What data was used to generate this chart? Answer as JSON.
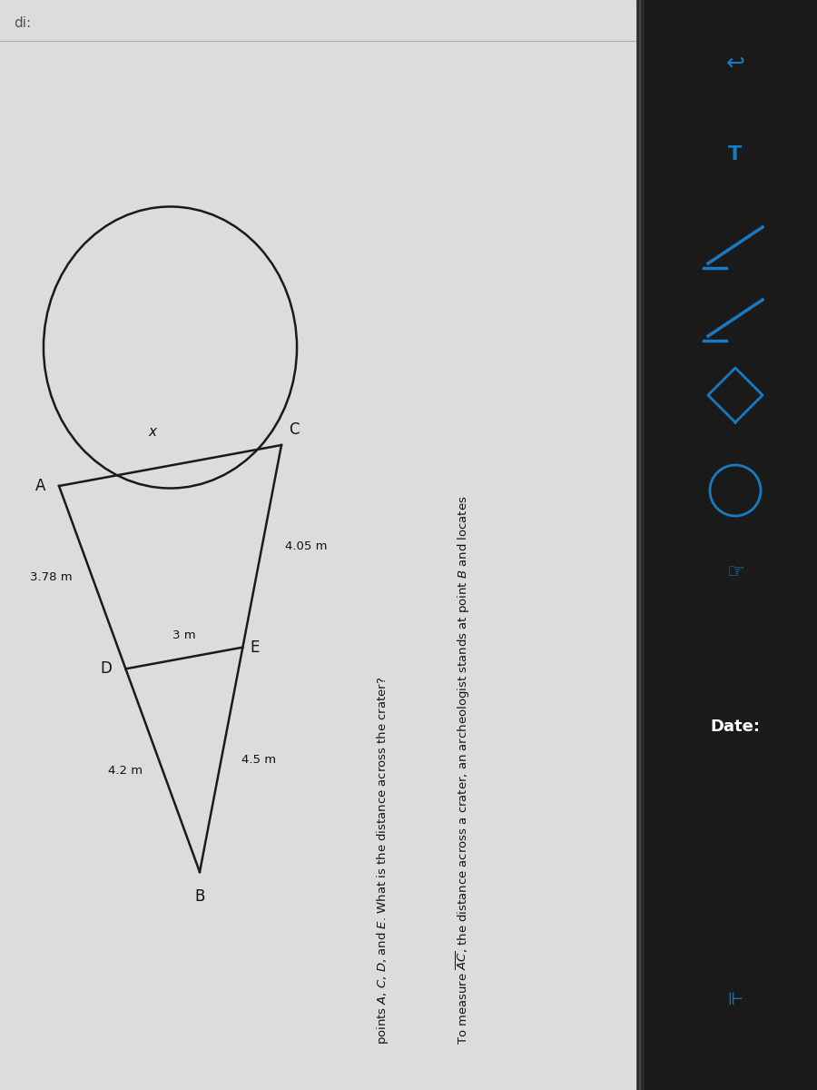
{
  "bg_outer": "#2a2a2a",
  "bg_left_panel": "#1a1a1a",
  "bg_page": "#e8e8e8",
  "bg_page2": "#d8d8d8",
  "line_color": "#1a1a1a",
  "text_color": "#111111",
  "blue_color": "#1a7abf",
  "toolbar_bg": "#1e1e1e",
  "labels": {
    "A": "A",
    "B": "B",
    "C": "C",
    "D": "D",
    "E": "E",
    "x": "x"
  },
  "measurements": {
    "CE": "4.05 m",
    "BE": "4.5 m",
    "DE": "3 m",
    "BD": "4.2 m",
    "AD": "3.78 m"
  },
  "problem_line1": "To measure $\\overline{AC}$, the distance across a crater, an archeologist stands at point $B$ and locates",
  "problem_line2": "points $A$, $C$, $D$, and $E$. What is the distance across the crater?",
  "date_label": "Date:",
  "partial_label": "di:"
}
